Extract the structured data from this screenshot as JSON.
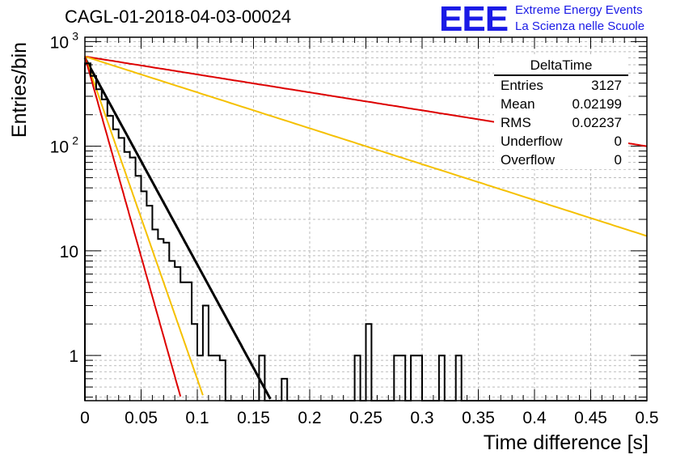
{
  "header": {
    "title": "CAGL-01-2018-04-03-00024",
    "logo": "EEE",
    "logo_line1": "Extreme Energy Events",
    "logo_line2": "La Scienza nelle Scuole"
  },
  "stats_box": {
    "title": "DeltaTime",
    "rows": [
      {
        "label": "Entries",
        "value": "3127"
      },
      {
        "label": "Mean",
        "value": "0.02199"
      },
      {
        "label": "RMS",
        "value": "0.02237"
      },
      {
        "label": "Underflow",
        "value": "0"
      },
      {
        "label": "Overflow",
        "value": "0"
      }
    ]
  },
  "chart_data": {
    "type": "line",
    "title": "CAGL-01-2018-04-03-00024",
    "xlabel": "Time difference [s]",
    "ylabel": "Entries/bin",
    "xlim": [
      0,
      0.5
    ],
    "ylim": [
      0.37,
      1100
    ],
    "yscale": "log",
    "grid": true,
    "x_ticks": [
      "0",
      "0.05",
      "0.1",
      "0.15",
      "0.2",
      "0.25",
      "0.3",
      "0.35",
      "0.4",
      "0.45",
      "0.5"
    ],
    "y_ticks": [
      {
        "value": 1,
        "label": "1"
      },
      {
        "value": 10,
        "label": "10"
      },
      {
        "value": 100,
        "label": "10",
        "exp": "2"
      },
      {
        "value": 1000,
        "label": "10",
        "exp": "3"
      }
    ],
    "colors": {
      "histogram": "#000000",
      "fit": "#000000",
      "red": "#dd0000",
      "yellow": "#f5c000"
    },
    "histogram": {
      "bin_width": 0.005,
      "values": [
        620,
        470,
        350,
        280,
        195,
        145,
        120,
        88,
        78,
        52,
        37,
        27,
        16,
        13,
        12,
        8,
        7,
        5,
        5,
        2,
        1,
        3,
        1,
        1,
        0.9,
        0,
        0,
        0,
        0,
        0,
        0,
        1,
        0,
        0,
        0,
        0.6,
        0,
        0,
        0,
        0,
        0,
        0,
        0,
        0,
        0,
        0,
        0,
        0,
        1,
        0,
        2,
        0,
        0,
        0,
        0,
        1,
        1,
        0,
        1,
        1,
        0,
        0,
        0,
        1,
        0,
        0,
        1,
        0,
        0,
        0,
        0,
        0,
        0,
        0,
        0,
        0,
        0,
        0,
        0,
        0,
        0,
        0,
        0,
        0,
        0,
        0,
        0,
        0,
        0,
        0,
        0,
        0,
        0,
        0,
        0,
        0,
        0,
        0,
        0,
        0
      ]
    },
    "series": [
      {
        "color": "fit",
        "a": 700,
        "b": -45.5,
        "x_range": [
          0,
          0.165
        ]
      },
      {
        "color": "red",
        "a": 720,
        "b": -3.95,
        "x_range": [
          0,
          0.5
        ]
      },
      {
        "color": "yellow",
        "a": 720,
        "b": -7.9,
        "x_range": [
          0,
          0.5
        ]
      },
      {
        "color": "yellow",
        "a": 720,
        "b": -71,
        "x_range": [
          0,
          0.105
        ]
      },
      {
        "color": "red",
        "a": 720,
        "b": -88,
        "x_range": [
          0,
          0.085
        ]
      }
    ]
  }
}
